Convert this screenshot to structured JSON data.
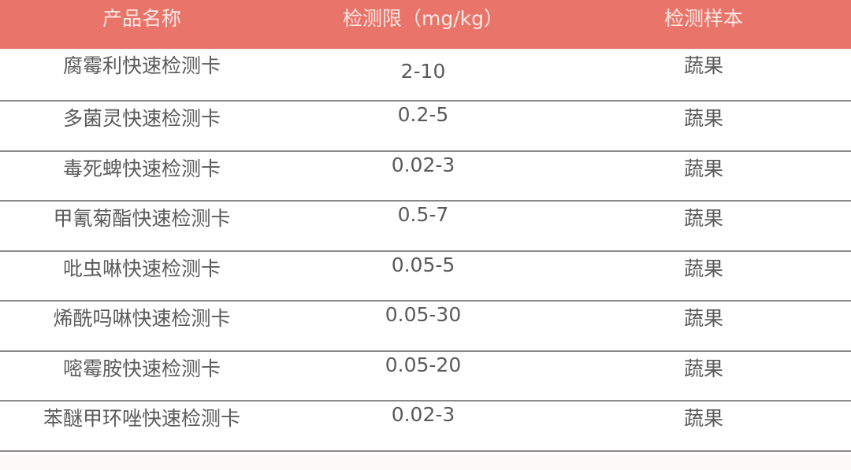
{
  "table": {
    "header_color": "#e8746a",
    "headers": [
      "产品名称",
      "检测限（mg/kg）",
      "检测样本"
    ],
    "rows": [
      [
        "腐霉利快速检测卡",
        "2-10",
        "蔬果"
      ],
      [
        "多菌灵快速检测卡",
        "0.2-5",
        "蔬果"
      ],
      [
        "毒死蜱快速检测卡",
        "0.02-3",
        "蔬果"
      ],
      [
        "甲氰菊酯快速检测卡",
        "0.5-7",
        "蔬果"
      ],
      [
        "吡虫啉快速检测卡",
        "0.05-5",
        "蔬果"
      ],
      [
        "烯酰吗啉快速检测卡",
        "0.05-30",
        "蔬果"
      ],
      [
        "嘧霉胺快速检测卡",
        "0.05-20",
        "蔬果"
      ],
      [
        "苯醚甲环唑快速检测卡",
        "0.02-3",
        "蔬果"
      ]
    ]
  }
}
